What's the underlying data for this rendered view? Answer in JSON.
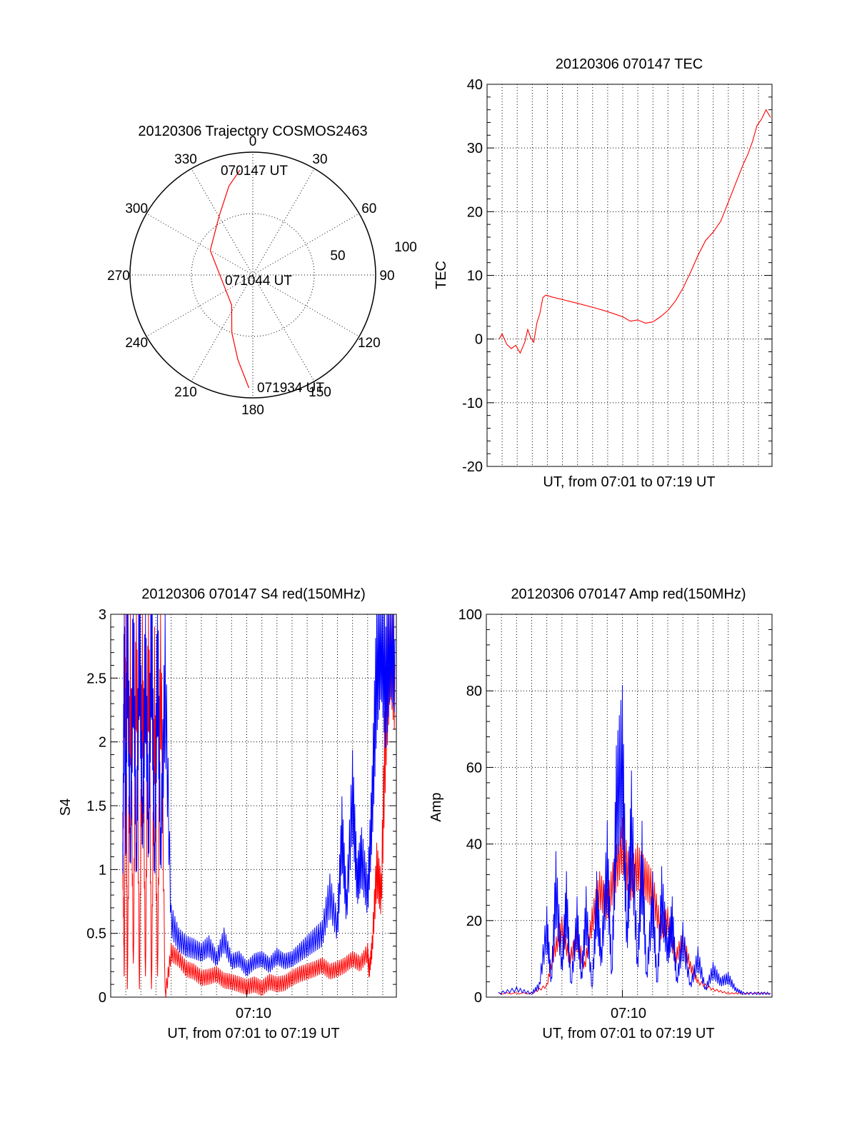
{
  "colors": {
    "red": "#ff0000",
    "blue": "#0000ff",
    "black": "#000000"
  },
  "chart_data": [
    {
      "id": "trajectory",
      "type": "scatter",
      "subtype": "polar",
      "title": "20120306 Trajectory COSMOS2463",
      "azimuth_labels": [
        "0",
        "30",
        "60",
        "90",
        "120",
        "150",
        "180",
        "210",
        "240",
        "270",
        "300",
        "330"
      ],
      "azimuths": [
        0,
        30,
        60,
        90,
        120,
        150,
        180,
        210,
        240,
        270,
        300,
        330
      ],
      "ring_labels": [
        "50",
        "100"
      ],
      "ring_values": [
        50,
        100
      ],
      "zenith_max": 100,
      "start_label": "070147 UT",
      "mid_label": "071044 UT",
      "end_label": "071934 UT",
      "trajectory": [
        {
          "az": 353,
          "zen": 86
        },
        {
          "az": 345,
          "zen": 75
        },
        {
          "az": 330,
          "zen": 55
        },
        {
          "az": 300,
          "zen": 40
        },
        {
          "az": 250,
          "zen": 25
        },
        {
          "az": 215,
          "zen": 30
        },
        {
          "az": 200,
          "zen": 50
        },
        {
          "az": 190,
          "zen": 70
        },
        {
          "az": 182,
          "zen": 92
        }
      ]
    },
    {
      "id": "tec",
      "type": "line",
      "title": "20120306 070147 TEC",
      "xlabel": "UT, from 07:01 to 07:19 UT",
      "ylabel": "TEC",
      "xlim": [
        421.0,
        439.9
      ],
      "ylim": [
        -20,
        40
      ],
      "yticks": [
        "-20",
        "-10",
        "0",
        "10",
        "20",
        "30",
        "40"
      ],
      "ytick_values": [
        -20,
        -10,
        0,
        10,
        20,
        30,
        40
      ],
      "grid": true,
      "series": [
        {
          "name": "TEC",
          "color": "#ff0000",
          "x": [
            421.8,
            422.0,
            422.3,
            422.6,
            422.9,
            423.2,
            423.5,
            423.7,
            423.9,
            424.1,
            424.3,
            424.5,
            424.7,
            424.9,
            425.3,
            426.0,
            427.0,
            428.0,
            429.0,
            430.0,
            430.5,
            431.0,
            431.5,
            432.0,
            432.5,
            433.0,
            433.5,
            434.0,
            434.5,
            435.0,
            435.5,
            436.0,
            436.5,
            437.0,
            437.5,
            438.0,
            438.3,
            438.6,
            438.9,
            439.2,
            439.5,
            439.8
          ],
          "y": [
            0,
            0.8,
            -0.8,
            -1.5,
            -1.0,
            -2.2,
            -0.5,
            1.5,
            0.2,
            -0.5,
            2.5,
            4.0,
            6.5,
            6.9,
            6.6,
            6.2,
            5.6,
            5.0,
            4.3,
            3.5,
            2.8,
            3.0,
            2.5,
            2.7,
            3.5,
            4.5,
            6.0,
            8.0,
            10.5,
            13.2,
            15.5,
            16.8,
            18.5,
            21.5,
            24.5,
            27.5,
            29.0,
            31.0,
            33.5,
            34.5,
            36.0,
            34.8
          ]
        }
      ]
    },
    {
      "id": "s4",
      "type": "line",
      "title": "20120306 070147 S4 red(150MHz)",
      "xlabel_tick": "07:10",
      "xlabel": "UT, from 07:01 to 07:19 UT",
      "ylabel": "S4",
      "xlim": [
        421.0,
        439.9
      ],
      "ylim": [
        0,
        3
      ],
      "yticks": [
        "0",
        "0.5",
        "1",
        "1.5",
        "2",
        "2.5",
        "3"
      ],
      "ytick_values": [
        0,
        0.5,
        1,
        1.5,
        2,
        2.5,
        3
      ],
      "xtick_value": 430.0,
      "grid": true,
      "series": [
        {
          "name": "S4 red",
          "color": "#ff0000",
          "x": [
            421.8,
            421.9,
            422.0,
            422.1,
            422.3,
            422.5,
            422.7,
            422.9,
            423.1,
            423.3,
            423.5,
            423.7,
            423.9,
            424.1,
            424.3,
            424.6,
            425.0,
            425.5,
            426.0,
            426.5,
            427.0,
            427.5,
            428.0,
            428.5,
            429.0,
            429.5,
            430.0,
            430.5,
            431.0,
            431.5,
            432.0,
            432.5,
            433.0,
            433.5,
            434.0,
            434.5,
            435.0,
            435.5,
            436.0,
            436.5,
            437.0,
            437.5,
            438.0,
            438.1,
            438.3,
            438.6,
            438.9,
            439.2,
            439.5,
            439.8
          ],
          "y": [
            1.2,
            0.1,
            2.9,
            0.0,
            2.6,
            0.2,
            3.0,
            0.0,
            2.7,
            0.1,
            3.0,
            0.0,
            2.4,
            0.1,
            2.8,
            0.0,
            0.35,
            0.3,
            0.22,
            0.2,
            0.15,
            0.16,
            0.18,
            0.13,
            0.12,
            0.1,
            0.08,
            0.1,
            0.07,
            0.12,
            0.1,
            0.11,
            0.15,
            0.18,
            0.2,
            0.22,
            0.25,
            0.2,
            0.22,
            0.25,
            0.3,
            0.26,
            0.35,
            0.2,
            0.4,
            1.0,
            0.8,
            2.2,
            3.0,
            2.6
          ]
        },
        {
          "name": "S4 blue",
          "color": "#0000ff",
          "x": [
            421.8,
            421.9,
            422.0,
            422.1,
            422.3,
            422.5,
            422.7,
            422.9,
            423.1,
            423.3,
            423.5,
            423.7,
            423.9,
            424.1,
            424.3,
            424.6,
            425.0,
            425.5,
            426.0,
            426.5,
            427.0,
            427.5,
            428.0,
            428.5,
            429.0,
            429.5,
            430.0,
            430.5,
            431.0,
            431.5,
            432.0,
            432.5,
            433.0,
            433.5,
            434.0,
            434.5,
            435.0,
            435.5,
            436.0,
            436.3,
            436.6,
            437.0,
            437.3,
            437.6,
            438.0,
            438.3,
            438.6,
            438.9,
            439.2,
            439.5,
            439.8
          ],
          "y": [
            1.0,
            2.8,
            1.2,
            3.0,
            1.1,
            2.9,
            1.0,
            3.0,
            1.3,
            2.7,
            1.2,
            3.0,
            1.0,
            2.8,
            1.1,
            2.5,
            0.6,
            0.45,
            0.4,
            0.38,
            0.35,
            0.4,
            0.3,
            0.45,
            0.28,
            0.3,
            0.22,
            0.28,
            0.3,
            0.25,
            0.32,
            0.28,
            0.3,
            0.35,
            0.4,
            0.45,
            0.5,
            0.8,
            0.55,
            1.3,
            0.7,
            1.6,
            0.9,
            1.1,
            0.8,
            1.5,
            2.6,
            3.0,
            2.4,
            3.0,
            2.8
          ]
        }
      ]
    },
    {
      "id": "amp",
      "type": "line",
      "title": "20120306 070147 Amp red(150MHz)",
      "xlabel_tick": "07:10",
      "xlabel": "UT, from 07:01 to 07:19 UT",
      "ylabel": "Amp",
      "xlim": [
        421.0,
        439.9
      ],
      "ylim": [
        0,
        100
      ],
      "yticks": [
        "0",
        "20",
        "40",
        "60",
        "80",
        "100"
      ],
      "ytick_values": [
        0,
        20,
        40,
        60,
        80,
        100
      ],
      "xtick_value": 430.0,
      "grid": true,
      "series": [
        {
          "name": "Amp red",
          "color": "#ff0000",
          "x": [
            421.8,
            424.0,
            425.0,
            425.5,
            426.0,
            426.5,
            427.0,
            427.5,
            428.0,
            428.5,
            429.0,
            429.5,
            430.0,
            430.5,
            431.0,
            431.5,
            432.0,
            432.5,
            433.0,
            433.5,
            434.0,
            434.5,
            435.0,
            436.0,
            437.0,
            438.0,
            439.8
          ],
          "y": [
            1,
            1,
            3,
            12,
            18,
            10,
            15,
            8,
            20,
            28,
            24,
            32,
            40,
            30,
            34,
            31,
            28,
            18,
            20,
            10,
            15,
            8,
            4,
            2,
            1,
            1,
            1
          ]
        },
        {
          "name": "Amp blue",
          "color": "#0000ff",
          "x": [
            421.8,
            423.0,
            424.0,
            424.5,
            425.0,
            425.3,
            425.6,
            426.0,
            426.3,
            426.6,
            427.0,
            427.3,
            427.6,
            428.0,
            428.3,
            428.6,
            429.0,
            429.3,
            429.6,
            430.0,
            430.3,
            430.6,
            431.0,
            431.3,
            431.6,
            432.0,
            432.3,
            432.6,
            433.0,
            433.3,
            433.6,
            434.0,
            434.5,
            435.0,
            435.5,
            436.0,
            436.5,
            437.0,
            437.5,
            438.0,
            439.0,
            439.8
          ],
          "y": [
            1,
            2,
            1,
            3,
            18,
            4,
            29,
            8,
            25,
            3,
            20,
            5,
            22,
            2,
            25,
            10,
            35,
            5,
            50,
            62,
            15,
            45,
            8,
            35,
            5,
            25,
            3,
            26,
            12,
            20,
            4,
            15,
            3,
            10,
            2,
            7,
            4,
            5,
            2,
            1,
            1,
            1
          ]
        }
      ]
    }
  ]
}
